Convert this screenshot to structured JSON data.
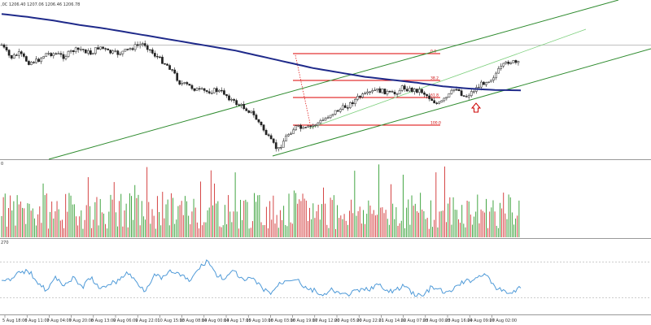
{
  "chart_data": [
    {
      "type": "candlestick",
      "panel": "price",
      "header": ",0C 1206.40 1207.06 1206.46 1206.78",
      "x_tick_labels": [
        "5 Aug 18:00",
        "6 Aug 11:00",
        "7 Aug 04:00",
        "7 Aug 20:00",
        "8 Aug 13:00",
        "9 Aug 06:00",
        "9 Aug 22:01",
        "10 Aug 15:00",
        "13 Aug 08:00",
        "14 Aug 00:00",
        "14 Aug 17:00",
        "15 Aug 10:00",
        "16 Aug 03:00",
        "16 Aug 19:00",
        "17 Aug 12:00",
        "20 Aug 05:00",
        "20 Aug 22:01",
        "21 Aug 14:00",
        "22 Aug 07:00",
        "23 Aug 00:00",
        "23 Aug 16:00",
        "24 Aug 09:00",
        "27 Aug 02:00"
      ],
      "close_path": [
        0.24,
        0.33,
        0.3,
        0.36,
        0.35,
        0.3,
        0.3,
        0.32,
        0.28,
        0.27,
        0.3,
        0.25,
        0.29,
        0.3,
        0.28,
        0.25,
        0.23,
        0.3,
        0.35,
        0.4,
        0.5,
        0.52,
        0.55,
        0.56,
        0.55,
        0.57,
        0.63,
        0.66,
        0.7,
        0.78,
        0.88,
        0.96,
        0.86,
        0.8,
        0.82,
        0.79,
        0.76,
        0.71,
        0.68,
        0.65,
        0.6,
        0.58,
        0.55,
        0.56,
        0.58,
        0.53,
        0.55,
        0.55,
        0.6,
        0.65,
        0.6,
        0.53,
        0.6,
        0.55,
        0.5,
        0.47,
        0.4,
        0.35,
        0.37
      ],
      "moving_average_path": [
        0.04,
        0.06,
        0.085,
        0.115,
        0.14,
        0.17,
        0.2,
        0.23,
        0.26,
        0.29,
        0.33,
        0.37,
        0.41,
        0.44,
        0.47,
        0.49,
        0.51,
        0.535,
        0.55,
        0.56,
        0.562
      ],
      "trend_channel": [
        "upper line",
        "lower line"
      ],
      "fibonacci_levels": [
        "0.0",
        "38.2",
        "61.8",
        "100.0"
      ],
      "annotation": "up-arrow"
    },
    {
      "type": "bar",
      "panel": "volume",
      "label": "0"
    },
    {
      "type": "line",
      "panel": "oscillator",
      "label": "270",
      "values": [
        0.5,
        0.45,
        0.6,
        0.62,
        0.45,
        0.3,
        0.5,
        0.4,
        0.5,
        0.35,
        0.52,
        0.3,
        0.42,
        0.45,
        0.6,
        0.45,
        0.3,
        0.55,
        0.5,
        0.62,
        0.55,
        0.45,
        0.65,
        0.8,
        0.55,
        0.5,
        0.62,
        0.45,
        0.5,
        0.35,
        0.25,
        0.4,
        0.48,
        0.5,
        0.32,
        0.3,
        0.2,
        0.32,
        0.22,
        0.25,
        0.3,
        0.32,
        0.4,
        0.28,
        0.3,
        0.38,
        0.25,
        0.2,
        0.35,
        0.3,
        0.25,
        0.4,
        0.45,
        0.5,
        0.6,
        0.35,
        0.3,
        0.25,
        0.35
      ]
    }
  ]
}
